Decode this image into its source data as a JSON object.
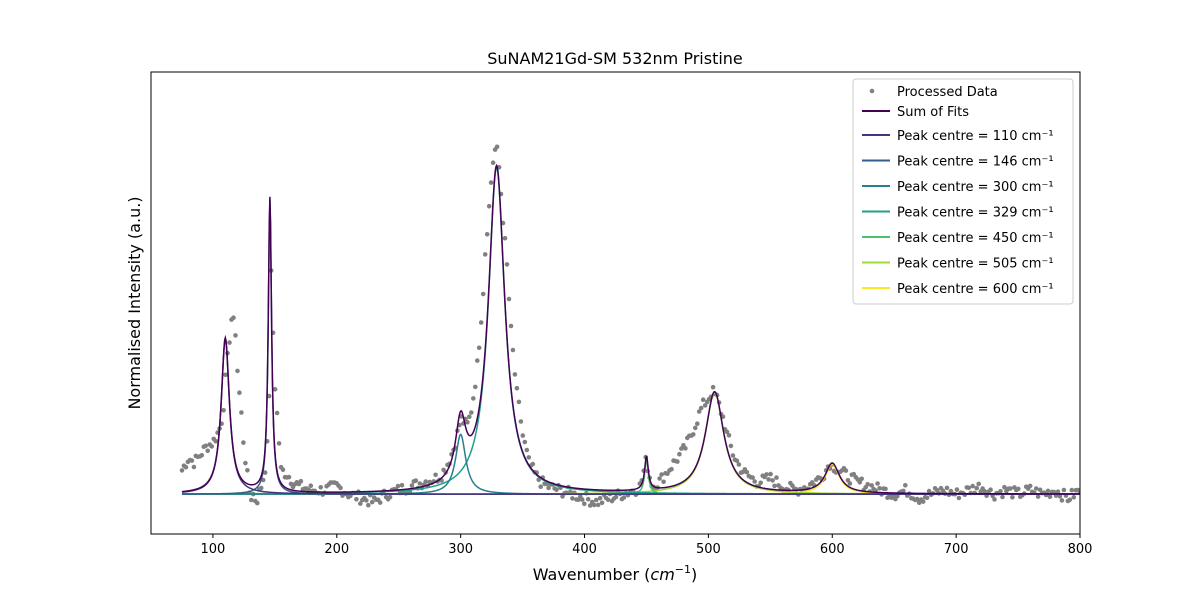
{
  "chart_data": {
    "type": "line",
    "title": "SuNAM21Gd-SM 532nm Pristine",
    "xlabel": "Wavenumber (cm⁻¹)",
    "ylabel": "Normalised Intensity (a.u.)",
    "xlim": [
      50,
      800
    ],
    "ylim": [
      -0.1,
      1.06
    ],
    "x_ticks": [
      "100",
      "200",
      "300",
      "400",
      "500",
      "600",
      "700",
      "800"
    ],
    "y_ticks_visible": false,
    "grid": false,
    "legend_position": "top-right",
    "processed_data": {
      "name": "Processed Data",
      "color": "#808080",
      "x": [
        75,
        80,
        85,
        90,
        95,
        100,
        105,
        108,
        110,
        113,
        115,
        118,
        120,
        123,
        125,
        128,
        130,
        133,
        135,
        138,
        140,
        143,
        145,
        147,
        150,
        155,
        160,
        165,
        170,
        180,
        190,
        200,
        210,
        220,
        230,
        240,
        250,
        260,
        270,
        280,
        285,
        290,
        295,
        298,
        300,
        303,
        305,
        308,
        310,
        313,
        315,
        318,
        320,
        323,
        325,
        327,
        329,
        331,
        333,
        335,
        338,
        340,
        343,
        345,
        348,
        350,
        355,
        360,
        365,
        370,
        380,
        390,
        400,
        410,
        420,
        430,
        440,
        445,
        448,
        450,
        452,
        455,
        460,
        465,
        470,
        475,
        480,
        485,
        490,
        495,
        500,
        503,
        505,
        507,
        510,
        513,
        515,
        520,
        525,
        530,
        540,
        550,
        560,
        570,
        580,
        590,
        595,
        598,
        600,
        602,
        605,
        610,
        615,
        620,
        630,
        640,
        650,
        660,
        670,
        680,
        690,
        700,
        710,
        720,
        730,
        740,
        750,
        760,
        770,
        780,
        790,
        800
      ],
      "y": [
        0.06,
        0.09,
        0.08,
        0.1,
        0.12,
        0.13,
        0.16,
        0.2,
        0.28,
        0.38,
        0.44,
        0.42,
        0.3,
        0.2,
        0.12,
        0.04,
        -0.01,
        0.0,
        -0.02,
        0.01,
        0.03,
        0.08,
        0.18,
        0.55,
        0.28,
        0.06,
        0.05,
        0.03,
        0.02,
        0.01,
        0.01,
        0.02,
        0.0,
        -0.01,
        -0.02,
        0.0,
        0.01,
        0.02,
        0.03,
        0.04,
        0.05,
        0.08,
        0.12,
        0.16,
        0.19,
        0.18,
        0.17,
        0.2,
        0.24,
        0.31,
        0.38,
        0.5,
        0.62,
        0.72,
        0.8,
        0.86,
        0.87,
        0.82,
        0.74,
        0.66,
        0.55,
        0.43,
        0.33,
        0.26,
        0.2,
        0.15,
        0.08,
        0.05,
        0.03,
        0.02,
        0.01,
        0.0,
        -0.01,
        -0.02,
        -0.01,
        0.0,
        0.01,
        0.02,
        0.06,
        0.09,
        0.05,
        0.02,
        0.03,
        0.05,
        0.07,
        0.09,
        0.11,
        0.14,
        0.18,
        0.22,
        0.24,
        0.26,
        0.25,
        0.24,
        0.21,
        0.18,
        0.15,
        0.1,
        0.07,
        0.05,
        0.03,
        0.04,
        0.02,
        0.01,
        0.02,
        0.04,
        0.06,
        0.08,
        0.07,
        0.07,
        0.06,
        0.05,
        0.04,
        0.03,
        0.02,
        0.01,
        0.0,
        0.01,
        -0.01,
        0.0,
        0.01,
        0.0,
        0.01,
        0.02,
        0.0,
        0.01,
        0.0,
        0.01,
        0.0,
        0.01,
        -0.01,
        0.01
      ]
    },
    "series": [
      {
        "name": "Sum of Fits",
        "color": "#440154",
        "kind": "sum"
      },
      {
        "name": "Peak centre = 110 cm⁻¹",
        "color": "#46337e",
        "center": 110,
        "amplitude": 0.39,
        "hwhm": 4
      },
      {
        "name": "Peak centre = 146 cm⁻¹",
        "color": "#365c8d",
        "center": 146,
        "amplitude": 0.74,
        "hwhm": 1.6
      },
      {
        "name": "Peak centre = 300 cm⁻¹",
        "color": "#277f8e",
        "center": 300,
        "amplitude": 0.15,
        "hwhm": 5
      },
      {
        "name": "Peak centre = 329 cm⁻¹",
        "color": "#1fa187",
        "center": 329,
        "amplitude": 0.82,
        "hwhm": 8
      },
      {
        "name": "Peak centre = 450 cm⁻¹",
        "color": "#4ac16d",
        "center": 450,
        "amplitude": 0.085,
        "hwhm": 1.8
      },
      {
        "name": "Peak centre = 505 cm⁻¹",
        "color": "#a0da39",
        "center": 505,
        "amplitude": 0.255,
        "hwhm": 9
      },
      {
        "name": "Peak centre = 600 cm⁻¹",
        "color": "#fde725",
        "center": 600,
        "amplitude": 0.075,
        "hwhm": 7
      }
    ],
    "fit_range": [
      75,
      800
    ],
    "baseline": 0.0
  }
}
